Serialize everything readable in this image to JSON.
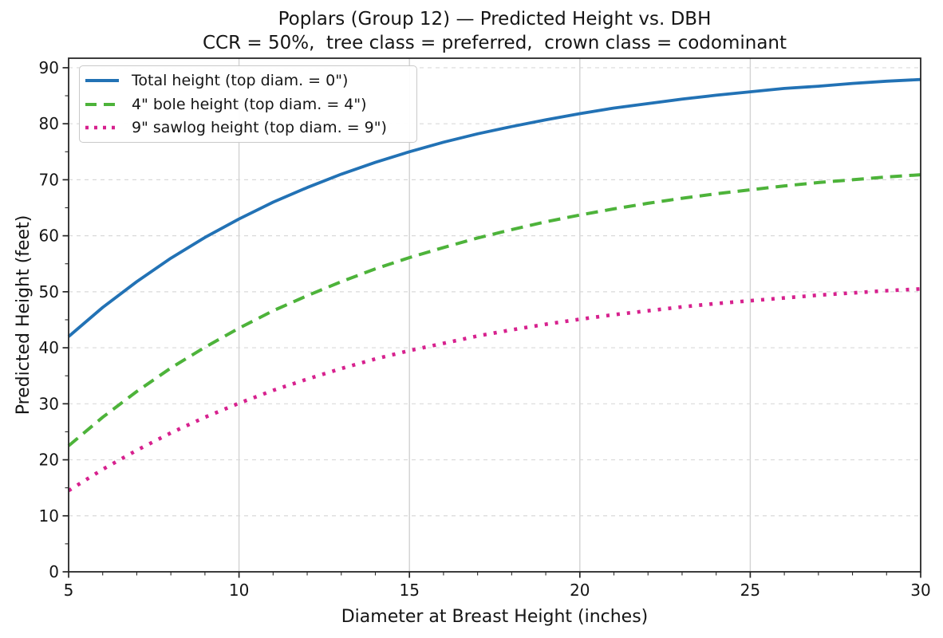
{
  "chart_data": {
    "type": "line",
    "title": "Poplars (Group 12) — Predicted Height vs. DBH",
    "subtitle": "CCR = 50%,  tree class = preferred,  crown class = codominant",
    "xlabel": "Diameter at Breast Height (inches)",
    "ylabel": "Predicted Height (feet)",
    "xlim": [
      5,
      30
    ],
    "ylim": [
      0,
      91.7
    ],
    "x_major_ticks": [
      5,
      10,
      15,
      20,
      25,
      30
    ],
    "x_minor_tick_step": 1,
    "y_major_ticks": [
      0,
      10,
      20,
      30,
      40,
      50,
      60,
      70,
      80,
      90
    ],
    "y_minor_tick_step": 5,
    "grid": {
      "horizontal_style": "dashed",
      "vertical_style": "solid",
      "horizontal_color": "#d9d9d9",
      "vertical_color": "#d2d2d2"
    },
    "legend_position": "upper-left",
    "axis_color": "#262626",
    "text_color": "#151515",
    "x": [
      5,
      6,
      7,
      8,
      9,
      10,
      11,
      12,
      13,
      14,
      15,
      16,
      17,
      18,
      19,
      20,
      21,
      22,
      23,
      24,
      25,
      26,
      27,
      28,
      29,
      30
    ],
    "series": [
      {
        "name": "Total height (top diam. = 0\")",
        "style": "solid",
        "color": "#2272b5",
        "values": [
          42.0,
          47.2,
          51.8,
          56.0,
          59.7,
          63.0,
          66.0,
          68.6,
          71.0,
          73.1,
          75.0,
          76.7,
          78.2,
          79.5,
          80.7,
          81.8,
          82.8,
          83.6,
          84.4,
          85.1,
          85.7,
          86.3,
          86.7,
          87.2,
          87.6,
          87.9
        ]
      },
      {
        "name": "4\" bole height (top diam. = 4\")",
        "style": "dashed",
        "color": "#4db33a",
        "values": [
          22.5,
          27.6,
          32.2,
          36.4,
          40.1,
          43.5,
          46.6,
          49.3,
          51.8,
          54.1,
          56.1,
          57.9,
          59.6,
          61.1,
          62.5,
          63.7,
          64.8,
          65.8,
          66.7,
          67.5,
          68.2,
          68.9,
          69.5,
          70.0,
          70.5,
          70.9
        ]
      },
      {
        "name": "9\" sawlog height (top diam. = 9\")",
        "style": "dotted",
        "color": "#d7218e",
        "values": [
          14.5,
          18.3,
          21.7,
          24.8,
          27.6,
          30.1,
          32.4,
          34.4,
          36.3,
          38.0,
          39.5,
          40.8,
          42.1,
          43.2,
          44.2,
          45.1,
          45.9,
          46.6,
          47.3,
          47.9,
          48.4,
          48.9,
          49.4,
          49.8,
          50.2,
          50.5
        ]
      }
    ]
  }
}
